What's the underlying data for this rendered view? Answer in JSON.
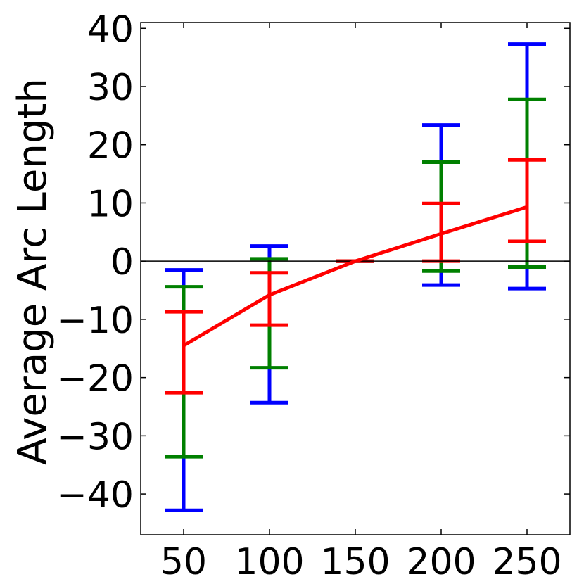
{
  "chart_data": {
    "type": "line",
    "title": "",
    "xlabel": "",
    "ylabel": "Average Arc Length",
    "xlim": [
      25,
      275
    ],
    "ylim": [
      -47,
      41
    ],
    "x": [
      50,
      100,
      150,
      200,
      250
    ],
    "x_ticks": [
      50,
      100,
      150,
      200,
      250
    ],
    "x_tick_labels": [
      "50",
      "100",
      "150",
      "200",
      "250"
    ],
    "y_ticks": [
      40,
      30,
      20,
      10,
      0,
      -10,
      -20,
      -30,
      -40
    ],
    "y_tick_labels": [
      "40",
      "30",
      "20",
      "10",
      "0",
      "−10",
      "−20",
      "−30",
      "−40"
    ],
    "reference_line_y": 0,
    "grid": false,
    "series": [
      {
        "color": "#ff0000",
        "values": [
          -14.5,
          -5.8,
          0,
          4.7,
          9.3
        ]
      }
    ],
    "error_bars": [
      {
        "color": "#0000ff",
        "ranges": [
          [
            -42.8,
            -1.5
          ],
          [
            -24.3,
            2.6
          ],
          [
            0,
            0
          ],
          [
            -4.1,
            23.4
          ],
          [
            -4.7,
            37.3
          ]
        ]
      },
      {
        "color": "#008000",
        "ranges": [
          [
            -33.6,
            -4.4
          ],
          [
            -18.3,
            0.4
          ],
          [
            0,
            0
          ],
          [
            -1.7,
            17.0
          ],
          [
            -1.0,
            27.8
          ]
        ]
      },
      {
        "color": "#ff0000",
        "ranges": [
          [
            -22.6,
            -8.7
          ],
          [
            -11.0,
            -2.0
          ],
          [
            0,
            0
          ],
          [
            0.0,
            9.9
          ],
          [
            3.4,
            17.4
          ]
        ]
      }
    ]
  }
}
